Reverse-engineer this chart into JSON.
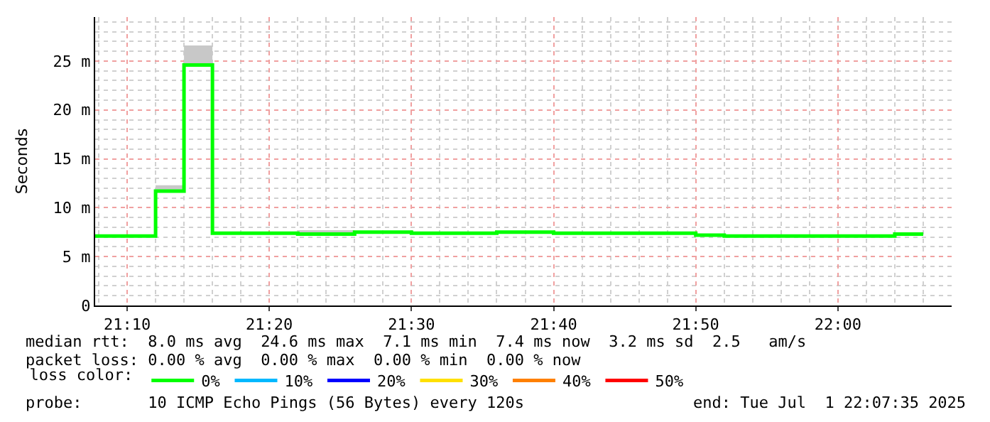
{
  "chart_data": {
    "type": "step",
    "ylabel": "Seconds",
    "x": [
      "2025-07-01T21:07:45",
      "2025-07-01T21:12",
      "2025-07-01T21:14",
      "2025-07-01T21:16",
      "2025-07-01T21:22",
      "2025-07-01T21:26",
      "2025-07-01T21:30",
      "2025-07-01T21:36",
      "2025-07-01T21:40",
      "2025-07-01T21:50",
      "2025-07-01T21:52",
      "2025-07-01T22:04",
      "2025-07-01T22:06"
    ],
    "series": [
      {
        "name": "0%",
        "color": "#00ff00",
        "values": [
          7.1,
          11.7,
          24.6,
          7.4,
          7.3,
          7.5,
          7.4,
          7.5,
          7.4,
          7.2,
          7.1,
          7.3,
          7.3
        ],
        "lower": [
          7.1,
          11.7,
          24.6,
          7.4,
          7.3,
          7.5,
          7.4,
          7.5,
          7.4,
          7.2,
          7.1,
          7.3,
          7.3
        ],
        "upper": [
          7.1,
          12.3,
          26.6,
          7.4,
          7.7,
          7.5,
          7.4,
          7.5,
          7.4,
          7.2,
          7.2,
          7.3,
          7.3
        ]
      },
      {
        "name": "10%",
        "color": "#00b8ff",
        "values": [
          null,
          null,
          null,
          null,
          null,
          null,
          null,
          null,
          null,
          null,
          null,
          null,
          null
        ]
      },
      {
        "name": "20%",
        "color": "#0000ff",
        "values": [
          null,
          null,
          null,
          null,
          null,
          null,
          null,
          null,
          null,
          null,
          null,
          null,
          null
        ]
      },
      {
        "name": "30%",
        "color": "#ffe000",
        "values": [
          null,
          null,
          null,
          null,
          null,
          null,
          null,
          null,
          null,
          null,
          null,
          null,
          null
        ]
      },
      {
        "name": "40%",
        "color": "#ff8000",
        "values": [
          null,
          null,
          null,
          null,
          null,
          null,
          null,
          null,
          null,
          null,
          null,
          null,
          null
        ]
      },
      {
        "name": "50%",
        "color": "#ff0000",
        "values": [
          null,
          null,
          null,
          null,
          null,
          null,
          null,
          null,
          null,
          null,
          null,
          null,
          null
        ]
      }
    ],
    "legend_title": "loss color:",
    "legend": "bottom",
    "xlim": [
      "2025-07-01T21:07:45",
      "2025-07-01T22:08"
    ],
    "xticks": [
      {
        "value": "2025-07-01T21:10",
        "label": "21:10"
      },
      {
        "value": "2025-07-01T21:20",
        "label": "21:20"
      },
      {
        "value": "2025-07-01T21:30",
        "label": "21:30"
      },
      {
        "value": "2025-07-01T21:40",
        "label": "21:40"
      },
      {
        "value": "2025-07-01T21:50",
        "label": "21:50"
      },
      {
        "value": "2025-07-01T22:00",
        "label": "22:00"
      }
    ],
    "ylim": [
      0,
      29.5
    ],
    "yticks": [
      0,
      {
        "value": 5,
        "label": "5 m"
      },
      {
        "value": 10,
        "label": "10 m"
      },
      {
        "value": 15,
        "label": "15 m"
      },
      {
        "value": 20,
        "label": "20 m"
      },
      {
        "value": 25,
        "label": "25 m"
      }
    ],
    "grid": true,
    "marker": "none",
    "line_style": "solid",
    "annotations": [
      "median rtt:  8.0 ms avg  24.6 ms max  7.1 ms min  7.4 ms now  3.2 ms sd  2.5   am/s",
      "packet loss: 0.00 % avg  0.00 % max  0.00 % min  0.00 % now",
      "probe:       10 ICMP Echo Pings (56 Bytes) every 120s",
      "end: Tue Jul  1 22:07:35 2025"
    ]
  }
}
